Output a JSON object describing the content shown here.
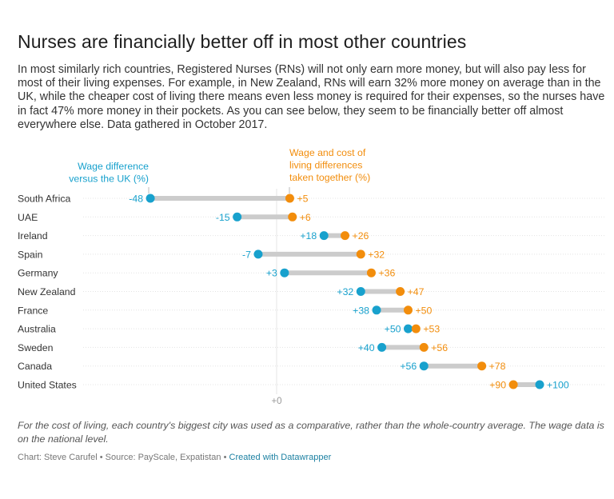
{
  "title": "Nurses are financially better off in most other countries",
  "intro": "In most similarly rich countries, Registered Nurses (RNs) will not only earn more money, but will also pay less for most of their living expenses. For example, in New Zealand, RNs will earn 32% more money on average than in the UK, while the cheaper cost of living there means even less money is required for their expenses, so the nurses have in fact 47% more money in their pockets. As you can see below, they seem to be financially better off almost everywhere else. Data gathered in October 2017.",
  "notes": "For the cost of living, each country's biggest city was used as a comparative, rather than the whole-country average. The wage data is on the national level.",
  "credits": {
    "text": "Chart: Steve Carufel • Source: PayScale, Expatistan • ",
    "link": "Created with Datawrapper"
  },
  "colors": {
    "wage": "#18a1cd",
    "combined": "#f28d0c",
    "connector": "#cccccc",
    "gridline": "#e4e4e4",
    "zero_line": "#e6e6e6",
    "label_text": "#333333",
    "axis_text": "#999999"
  },
  "chart_data": {
    "type": "range-dot",
    "legend": {
      "wage": [
        "Wage difference",
        "versus the UK (%)"
      ],
      "combined": [
        "Wage and cost of",
        "living differences",
        "taken together (%)"
      ]
    },
    "x_tick": "+0",
    "xlim": [
      -60,
      110
    ],
    "series": [
      {
        "key": "wage",
        "name": "Wage difference versus the UK (%)"
      },
      {
        "key": "combined",
        "name": "Wage and cost of living differences taken together (%)"
      }
    ],
    "rows": [
      {
        "country": "South Africa",
        "wage": -48,
        "combined": 5,
        "wage_label": "-48",
        "combined_label": "+5"
      },
      {
        "country": "UAE",
        "wage": -15,
        "combined": 6,
        "wage_label": "-15",
        "combined_label": "+6"
      },
      {
        "country": "Ireland",
        "wage": 18,
        "combined": 26,
        "wage_label": "+18",
        "combined_label": "+26"
      },
      {
        "country": "Spain",
        "wage": -7,
        "combined": 32,
        "wage_label": "-7",
        "combined_label": "+32"
      },
      {
        "country": "Germany",
        "wage": 3,
        "combined": 36,
        "wage_label": "+3",
        "combined_label": "+36"
      },
      {
        "country": "New Zealand",
        "wage": 32,
        "combined": 47,
        "wage_label": "+32",
        "combined_label": "+47"
      },
      {
        "country": "France",
        "wage": 38,
        "combined": 50,
        "wage_label": "+38",
        "combined_label": "+50"
      },
      {
        "country": "Australia",
        "wage": 50,
        "combined": 53,
        "wage_label": "+50",
        "combined_label": "+53"
      },
      {
        "country": "Sweden",
        "wage": 40,
        "combined": 56,
        "wage_label": "+40",
        "combined_label": "+56"
      },
      {
        "country": "Canada",
        "wage": 56,
        "combined": 78,
        "wage_label": "+56",
        "combined_label": "+78"
      },
      {
        "country": "United States",
        "wage": 100,
        "combined": 90,
        "wage_label": "+100",
        "combined_label": "+90"
      }
    ]
  }
}
